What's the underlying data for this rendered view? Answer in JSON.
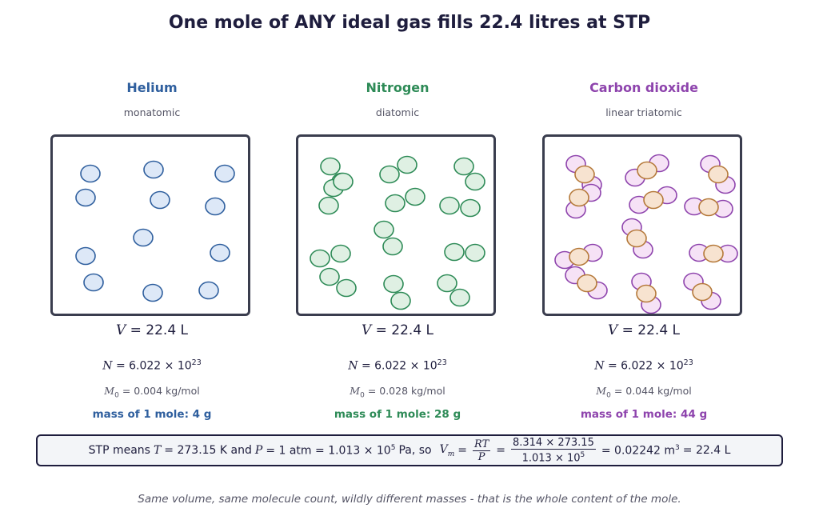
{
  "title": "One mole of ANY ideal gas fills 22.4 litres at STP",
  "colors": {
    "helium": "#2f5f9e",
    "nitrogen": "#2e8b57",
    "co2": "#8e44ad",
    "carbon_fill": "#f7e3d0",
    "carbon_stroke": "#b5793a",
    "oxygen_fill": "#f6e2f6"
  },
  "gases": [
    {
      "name": "Helium",
      "kind": "monatomic",
      "volume_label": "V",
      "volume_value": "= 22.4 L",
      "n_label": "N",
      "n_value": "= 6.022 × 10",
      "n_exp": "23",
      "m_label": "M",
      "m_sub": "0",
      "m_value": "= 0.004 kg/mol",
      "mass_text": "mass of 1 mole:  4 g"
    },
    {
      "name": "Nitrogen",
      "kind": "diatomic",
      "volume_label": "V",
      "volume_value": "= 22.4 L",
      "n_label": "N",
      "n_value": "= 6.022 × 10",
      "n_exp": "23",
      "m_label": "M",
      "m_sub": "0",
      "m_value": "= 0.028 kg/mol",
      "mass_text": "mass of 1 mole:  28 g"
    },
    {
      "name": "Carbon dioxide",
      "kind": "linear triatomic",
      "volume_label": "V",
      "volume_value": "= 22.4 L",
      "n_label": "N",
      "n_value": "= 6.022 × 10",
      "n_exp": "23",
      "m_label": "M",
      "m_sub": "0",
      "m_value": "= 0.044 kg/mol",
      "mass_text": "mass of 1 mole:  44 g"
    }
  ],
  "stp": {
    "part1": "STP means",
    "t_sym": "T",
    "part2": "= 273.15 K and",
    "p_sym": "P",
    "part3": "= 1 atm  = 1.013 × 10",
    "exp1": "5",
    "part4": "Pa,   so",
    "vm_sym": "V",
    "vm_sub": "m",
    "eq1": "=",
    "frac1_num": "RT",
    "frac1_den": "P",
    "eq2": "=",
    "frac2_num": "8.314 × 273.15",
    "frac2_den": "1.013 × 10",
    "frac2_den_exp": "5",
    "result": "= 0.02242 m",
    "result_exp": "3",
    "final": "= 22.4 L"
  },
  "caption": "Same volume, same molecule count, wildly different masses - that is the whole content of the mole."
}
